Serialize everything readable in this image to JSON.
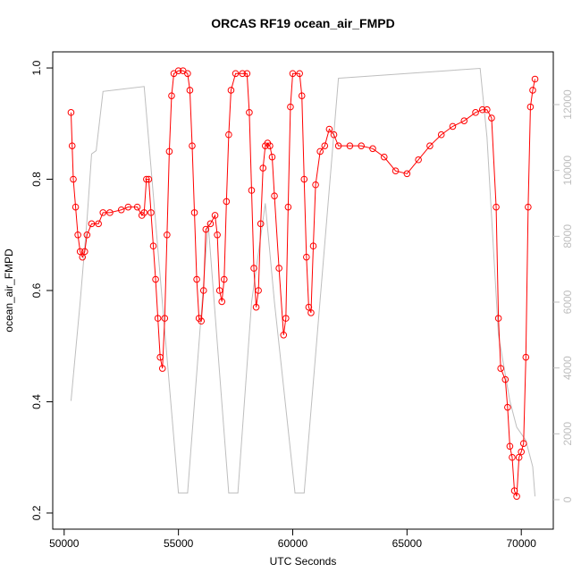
{
  "chart_data": {
    "type": "line",
    "title": "ORCAS RF19 ocean_air_FMPD",
    "x_label": "UTC Seconds",
    "y_label": "ocean_air_FMPD",
    "xlim": [
      49500,
      71400
    ],
    "ylim": [
      0.171,
      1.029
    ],
    "y2lim": [
      -896,
      13602
    ],
    "xticks": [
      50000,
      55000,
      60000,
      65000,
      70000
    ],
    "yticks": [
      0.2,
      0.4,
      0.6,
      0.8,
      {
        "value": 1,
        "label": "1.0"
      }
    ],
    "y2ticks": [
      0,
      2000,
      4000,
      6000,
      8000,
      10000,
      12000
    ],
    "series": [
      {
        "color": "#ff0000",
        "marker": "circle",
        "x": [
          50300,
          50350,
          50400,
          50500,
          50600,
          50700,
          50800,
          50900,
          51000,
          51200,
          51500,
          51700,
          52000,
          52500,
          52800,
          53200,
          53400,
          53500,
          53600,
          53700,
          53800,
          53900,
          54000,
          54100,
          54200,
          54300,
          54400,
          54500,
          54600,
          54700,
          54800,
          55000,
          55200,
          55400,
          55500,
          55600,
          55700,
          55800,
          55900,
          56000,
          56100,
          56200,
          56400,
          56600,
          56700,
          56800,
          56900,
          57000,
          57100,
          57200,
          57300,
          57500,
          57800,
          58000,
          58100,
          58200,
          58300,
          58400,
          58500,
          58600,
          58700,
          58800,
          58900,
          59000,
          59100,
          59200,
          59400,
          59600,
          59700,
          59800,
          59900,
          60000,
          60300,
          60400,
          60500,
          60600,
          60700,
          60800,
          60900,
          61000,
          61200,
          61400,
          61600,
          61800,
          62000,
          62500,
          63000,
          63500,
          64000,
          64500,
          65000,
          65500,
          66000,
          66500,
          67000,
          67500,
          68000,
          68300,
          68500,
          68700,
          68900,
          69000,
          69100,
          69300,
          69400,
          69500,
          69600,
          69700,
          69800,
          69900,
          70000,
          70100,
          70200,
          70300,
          70400,
          70500,
          70600
        ],
        "values": [
          0.92,
          0.86,
          0.8,
          0.75,
          0.7,
          0.67,
          0.66,
          0.67,
          0.7,
          0.72,
          0.72,
          0.74,
          0.74,
          0.745,
          0.75,
          0.75,
          0.735,
          0.74,
          0.8,
          0.8,
          0.74,
          0.68,
          0.62,
          0.55,
          0.48,
          0.46,
          0.55,
          0.7,
          0.85,
          0.95,
          0.99,
          0.995,
          0.995,
          0.99,
          0.96,
          0.86,
          0.74,
          0.62,
          0.55,
          0.545,
          0.6,
          0.71,
          0.72,
          0.735,
          0.7,
          0.6,
          0.58,
          0.62,
          0.76,
          0.88,
          0.96,
          0.99,
          0.99,
          0.99,
          0.92,
          0.78,
          0.64,
          0.57,
          0.6,
          0.72,
          0.82,
          0.86,
          0.865,
          0.86,
          0.84,
          0.77,
          0.64,
          0.52,
          0.55,
          0.75,
          0.93,
          0.99,
          0.99,
          0.95,
          0.8,
          0.66,
          0.57,
          0.56,
          0.68,
          0.79,
          0.85,
          0.86,
          0.89,
          0.88,
          0.86,
          0.86,
          0.86,
          0.855,
          0.84,
          0.815,
          0.81,
          0.835,
          0.86,
          0.88,
          0.895,
          0.905,
          0.92,
          0.925,
          0.925,
          0.91,
          0.75,
          0.55,
          0.46,
          0.44,
          0.39,
          0.32,
          0.3,
          0.24,
          0.23,
          0.3,
          0.31,
          0.325,
          0.48,
          0.75,
          0.93,
          0.96,
          0.98
        ]
      },
      {
        "color": "#bebebe",
        "axis": "y2",
        "x": [
          50300,
          50700,
          51000,
          51200,
          51400,
          51700,
          53500,
          55000,
          55400,
          56300,
          57200,
          57600,
          58200,
          58800,
          59200,
          60100,
          60500,
          62000,
          68200,
          68500,
          69000,
          69500,
          69800,
          70200,
          70500,
          70600
        ],
        "values": [
          3000,
          6000,
          8500,
          10500,
          10600,
          12400,
          12550,
          200,
          200,
          8400,
          200,
          200,
          6000,
          9000,
          6000,
          200,
          200,
          12800,
          13100,
          11000,
          5000,
          3000,
          2200,
          1800,
          1000,
          100
        ]
      }
    ]
  }
}
